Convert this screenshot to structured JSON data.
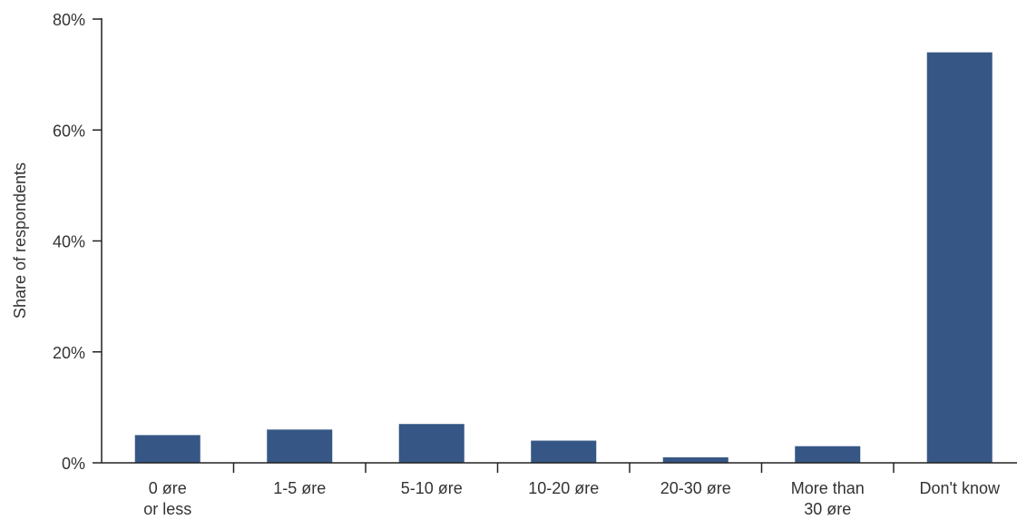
{
  "chart_data": {
    "type": "bar",
    "title": "",
    "xlabel": "",
    "ylabel": "Share of respondents",
    "ylim": [
      0,
      80
    ],
    "yticks": [
      0,
      20,
      40,
      60,
      80
    ],
    "ytick_labels": [
      "0%",
      "20%",
      "40%",
      "60%",
      "80%"
    ],
    "categories": [
      "0 øre or less",
      "1-5 øre",
      "5-10 øre",
      "10-20 øre",
      "20-30 øre",
      "More than 30 øre",
      "Don't know"
    ],
    "category_lines": [
      [
        "0 øre",
        "or less"
      ],
      [
        "1-5 øre"
      ],
      [
        "5-10 øre"
      ],
      [
        "10-20 øre"
      ],
      [
        "20-30 øre"
      ],
      [
        "More than",
        "30 øre"
      ],
      [
        "Don't know"
      ]
    ],
    "values": [
      5,
      6,
      7,
      4,
      1,
      3,
      74
    ],
    "bar_color": "#365785",
    "grid": false,
    "legend": "none"
  }
}
